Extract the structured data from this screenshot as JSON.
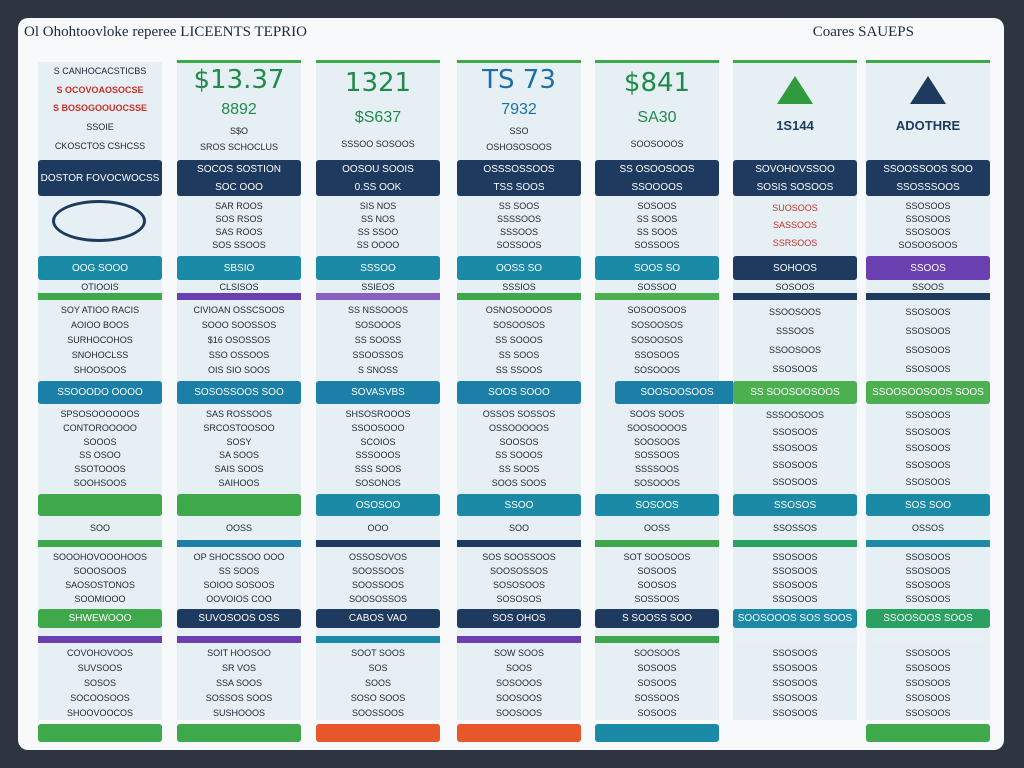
{
  "header": {
    "title": "Ol Ohohtoovloke reperee LICEENTS TEPRIO",
    "right": "Coares SAUEPS"
  },
  "columns": [
    {
      "head": [
        "S CANHOCACSTICBS",
        "S OCOVOAOSOCSE",
        "S BOSOGOOUOCSSE",
        "SSOIE",
        "CKOSCTOS CSHCSS"
      ],
      "bar1": [
        "DOSTOR FOVOCWOCSS"
      ],
      "button1": "OOG SOOO",
      "caption1": "OTIOOIS",
      "list2": [
        "SOY ATIOO RACIS",
        "AOIOO BOOS",
        "SURHOCOHOS",
        "SNOHOCLSS",
        "SHOOSOOS"
      ],
      "bar2": "SSOOODO OOOO",
      "list3": [
        "SPSOSOOOOOOS",
        "CONTOROOOOO",
        "SOOOS",
        "SS OSOO",
        "SSOTOOOS",
        "SOOHSOOS"
      ],
      "caption2": "SOO",
      "list4": [
        "SOOOHOVOOOHOOS",
        "SOOOSOOS",
        "SAOSOSTONOS",
        "SOOMIOOO"
      ],
      "bar3": "SHWEWOOO",
      "list5": [
        "COVOHOVOOS",
        "SUVSOOS",
        "SOSOS",
        "SOCOOSOOS",
        "SHOOVOOCOS"
      ]
    },
    {
      "head": [
        "$13.37",
        "8892",
        "S$O",
        "SROS SCHOCLUS"
      ],
      "bar1": [
        "SOCOS SOSTION",
        "SOC OOO"
      ],
      "list1": [
        "SAR ROOS",
        "SOS RSOS",
        "SAS ROOS",
        "SOS SSOOS"
      ],
      "button1": "SBSIO",
      "caption1": "CLSISOS",
      "list2": [
        "CIVIOAN OSSCSOOS",
        "SOOO SOOSSOS",
        "$16 OSOSSOS",
        "SSO OSSOOS",
        "OIS SIO SOOS"
      ],
      "bar2": "SOSOSSOOS SOO",
      "list3": [
        "SAS ROSSOOS",
        "SRCOSTOOSOO",
        "SOSY",
        "SA SOOS",
        "SAIS SOOS",
        "SAIHOOS"
      ],
      "caption2": "OOSS",
      "list4": [
        "OP SHOCSSOO OOO",
        "SS SOOS",
        "SOIOO SOSOOS",
        "OOVOIOS COO"
      ],
      "bar3": "SUVOSOOS OSS",
      "list5": [
        "SOIT HOOSOO",
        "SR VOS",
        "SSA SOOS",
        "SOSSOS SOOS",
        "SUSHOOOS"
      ]
    },
    {
      "head": [
        "1321",
        "$S637",
        "SSSOO SOSOOS"
      ],
      "bar1": [
        "OOSOU SOOIS",
        "0.SS OOK"
      ],
      "list1": [
        "SIS NOS",
        "SS NOS",
        "SS SSOO",
        "SS OOOO"
      ],
      "button1": "SSSOO",
      "caption1": "SSIEOS",
      "list2": [
        "SS NSSOOOS",
        "SOSOOOS",
        "SS SOOSS",
        "SSOOSSOS",
        "S SNOSS"
      ],
      "bar2": "SOVASVBS",
      "list3": [
        "SHSOSROOOS",
        "SSOOSOOO",
        "SCOIOS",
        "SSSOOOS",
        "SSS SOOS",
        "SOSONOS"
      ],
      "button2": "OSOSOO",
      "caption2": "OOO",
      "list4": [
        "OSSOSOVOS",
        "SOOSSOOS",
        "SOOSSOOS",
        "SOOSOSSOS"
      ],
      "bar3": "CABOS VAO",
      "list5": [
        "SOOT SOOS",
        "SOS",
        "SOOS",
        "SOSO SOOS",
        "SOOSSOOS"
      ]
    },
    {
      "head": [
        "TS 73",
        "7932",
        "SSO",
        "OSHOSOSOOS"
      ],
      "bar1": [
        "OSSSOSSOOS",
        "TSS SOOS"
      ],
      "list1": [
        "SS SOOS",
        "SSSSOOS",
        "SSSOOS",
        "SOSSOOS"
      ],
      "button1": "OOSS SO",
      "caption1": "SSSIOS",
      "list2": [
        "OSNOSOOOOS",
        "SOSOOSOS",
        "SS SOOOS",
        "SS SOOS",
        "SS SSOOS"
      ],
      "bar2": "SOOS SOOO",
      "list3": [
        "OSSOS SOSSOS",
        "OSSOOOOOS",
        "SOOSOS",
        "SS SOOOS",
        "SS SOOS",
        "SOOS SOOS"
      ],
      "button2": "SSOO",
      "caption2": "SOO",
      "list4": [
        "SOS SOOSSOOS",
        "SOOSOSSOS",
        "SOSOSOOS",
        "SOSOSOS"
      ],
      "bar3": "SOS OHOS",
      "list5": [
        "SOW SOOS",
        "SOOS",
        "SOSOOOS",
        "SOOSOOS",
        "SOOSOOS"
      ]
    },
    {
      "head": [
        "$841",
        "SA30",
        "SOOSOOOS"
      ],
      "bar1": [
        "SS OSOOSOOS",
        "SSOOOOS"
      ],
      "list1": [
        "SOSOOS",
        "SS SOOS",
        "SS SOOS",
        "SOSSOOS"
      ],
      "button1": "SOOS SO",
      "caption1": "SOSSOO",
      "list2": [
        "SOSOOSOOS",
        "SOSOOSOS",
        "SOSOOSOS",
        "SSOSOOS",
        "SOSOOOS"
      ],
      "bar2": "SOOSOOSOOS",
      "list3": [
        "SOOS SOOS",
        "SOOSOOOOS",
        "SOOSOOS",
        "SOSSOOS",
        "SSSSOOS",
        "SOSOOOS"
      ],
      "button2": "SOSOOS",
      "caption2": "OOSS",
      "list4": [
        "SOT SOOSOOS",
        "SOSOOS",
        "SOOSOS",
        "SOSSOOS"
      ],
      "bar3": "S SOOSS SOO",
      "list5": [
        "SOOSOOS",
        "SOSOOS",
        "SOSOOS",
        "SOSSOOS",
        "SOSOOS"
      ]
    },
    {
      "head": [
        "1S144"
      ],
      "bar1": [
        "SOVOHOVSSOO",
        "SOSIS SOSOOS"
      ],
      "list1": [
        "SUOSOOS",
        "SASSOOS",
        "SSRSOOS"
      ],
      "button1": "SOHOOS",
      "caption1": "SOSOOS",
      "list2": [
        "SSOOSOOS",
        "SSSOOS",
        "SSOOSOOS",
        "SSOSOOS"
      ],
      "bar2": "SS SOOSOOSOOS",
      "list3": [
        "SSSOOSOOS",
        "SSOSOOS",
        "SSOSOOS",
        "SSOSOOS",
        "SSOSOOS"
      ],
      "button2": "SSOSOS",
      "caption2": "SSOSSOS",
      "list4": [
        "SSOSOOS",
        "SSOSOOS",
        "SSOSOOS",
        "SSOSOOS"
      ],
      "bar3": "SOOSOOOS SOS SOOS",
      "list5": [
        "SSOSOOS",
        "SSOSOOS",
        "SSOSOOS",
        "SSOSOOS",
        "SSOSOOS"
      ]
    },
    {
      "head": [
        "ADOTHRE"
      ],
      "bar1": [
        "SSOOSSOOS SOO",
        "SSOSSSOOS"
      ],
      "list1": [
        "SSOSOOS",
        "SSOSOOS",
        "SSOSOOS",
        "SOSOOSOOS"
      ],
      "button1": "SSOOS",
      "caption1": "SSOOS",
      "list2": [
        "SSOSOOS",
        "SSOSOOS",
        "SSOSOOS",
        "SSOSOOS"
      ],
      "bar2": "SSOOSOOSOOS SOOS",
      "list3": [
        "SSOSOOS",
        "SSOSOOS",
        "SSOSOOS",
        "SSOSOOS",
        "SSOSOOS"
      ],
      "button2": "SOS SOO",
      "caption2": "OSSOS",
      "list4": [
        "SSOSOOS",
        "SSOSOOS",
        "SSOSOOS",
        "SSOSOOS"
      ],
      "bar3": "SSOOSOOS SOOS",
      "list5": [
        "SSOSOOS",
        "SSOSOOS",
        "SSOSOOS",
        "SSOSOOS",
        "SSOSOOS"
      ]
    }
  ]
}
